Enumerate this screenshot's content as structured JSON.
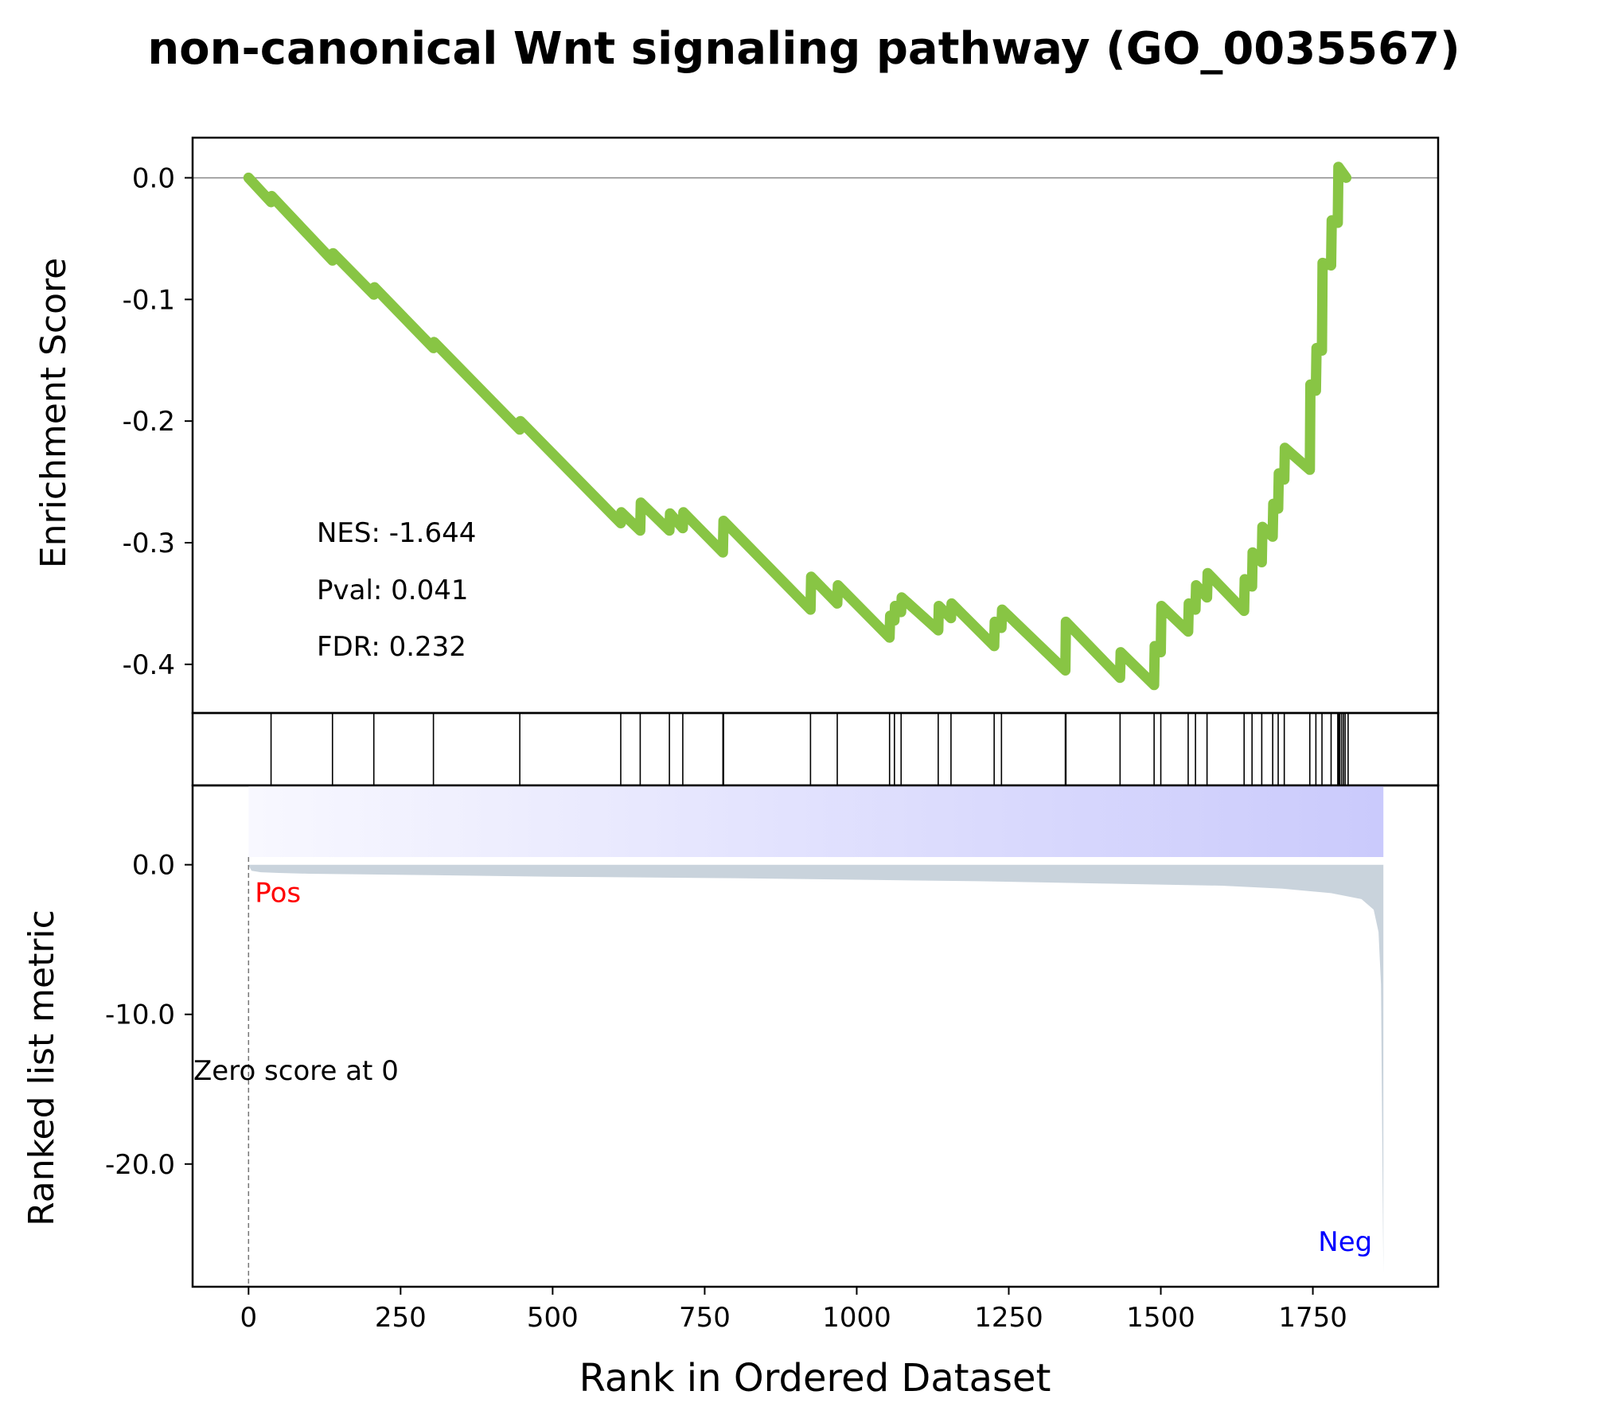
{
  "chart_data": {
    "type": "line",
    "title": "non-canonical Wnt signaling pathway (GO_0035567)",
    "xlabel": "Rank in Ordered Dataset",
    "x_ticks": [
      "0",
      "250",
      "500",
      "750",
      "1000",
      "1250",
      "1500",
      "1750"
    ],
    "xlim": [
      -92,
      1956
    ],
    "n_genes": 1866,
    "colors": {
      "es_line": "#88c544",
      "metric_fill": "#c9d3dc",
      "pos": "#ff0000",
      "neg": "#0000ff",
      "heat_start": "#f8f8ff",
      "heat_end": "#cacafc"
    },
    "enrichment": {
      "ylabel": "Enrichment Score",
      "ylim": [
        -0.44,
        0.033
      ],
      "y_ticks": [
        "0.0",
        "-0.1",
        "-0.2",
        "-0.3",
        "-0.4"
      ],
      "stats": {
        "nes": "NES: -1.644",
        "pval": "Pval: 0.041",
        "fdr": "FDR: 0.232"
      },
      "points": [
        [
          0,
          0.0
        ],
        [
          37,
          -0.02
        ],
        [
          38,
          -0.015
        ],
        [
          138,
          -0.068
        ],
        [
          139,
          -0.062
        ],
        [
          206,
          -0.096
        ],
        [
          207,
          -0.09
        ],
        [
          304,
          -0.14
        ],
        [
          305,
          -0.135
        ],
        [
          446,
          -0.207
        ],
        [
          447,
          -0.2
        ],
        [
          612,
          -0.284
        ],
        [
          613,
          -0.275
        ],
        [
          644,
          -0.29
        ],
        [
          645,
          -0.267
        ],
        [
          692,
          -0.29
        ],
        [
          693,
          -0.276
        ],
        [
          714,
          -0.288
        ],
        [
          715,
          -0.275
        ],
        [
          780,
          -0.308
        ],
        [
          781,
          -0.282
        ],
        [
          924,
          -0.355
        ],
        [
          925,
          -0.328
        ],
        [
          968,
          -0.35
        ],
        [
          969,
          -0.335
        ],
        [
          1054,
          -0.378
        ],
        [
          1055,
          -0.36
        ],
        [
          1062,
          -0.364
        ],
        [
          1063,
          -0.352
        ],
        [
          1073,
          -0.357
        ],
        [
          1074,
          -0.345
        ],
        [
          1134,
          -0.372
        ],
        [
          1135,
          -0.352
        ],
        [
          1155,
          -0.362
        ],
        [
          1156,
          -0.35
        ],
        [
          1226,
          -0.385
        ],
        [
          1227,
          -0.365
        ],
        [
          1238,
          -0.37
        ],
        [
          1239,
          -0.355
        ],
        [
          1343,
          -0.405
        ],
        [
          1344,
          -0.365
        ],
        [
          1433,
          -0.411
        ],
        [
          1434,
          -0.39
        ],
        [
          1489,
          -0.417
        ],
        [
          1490,
          -0.385
        ],
        [
          1500,
          -0.39
        ],
        [
          1501,
          -0.352
        ],
        [
          1545,
          -0.373
        ],
        [
          1546,
          -0.35
        ],
        [
          1557,
          -0.355
        ],
        [
          1558,
          -0.335
        ],
        [
          1576,
          -0.345
        ],
        [
          1577,
          -0.325
        ],
        [
          1637,
          -0.356
        ],
        [
          1638,
          -0.33
        ],
        [
          1650,
          -0.336
        ],
        [
          1651,
          -0.308
        ],
        [
          1666,
          -0.316
        ],
        [
          1667,
          -0.287
        ],
        [
          1684,
          -0.295
        ],
        [
          1685,
          -0.268
        ],
        [
          1693,
          -0.272
        ],
        [
          1694,
          -0.243
        ],
        [
          1703,
          -0.248
        ],
        [
          1704,
          -0.222
        ],
        [
          1745,
          -0.24
        ],
        [
          1746,
          -0.17
        ],
        [
          1755,
          -0.175
        ],
        [
          1756,
          -0.14
        ],
        [
          1765,
          -0.142
        ],
        [
          1766,
          -0.07
        ],
        [
          1780,
          -0.072
        ],
        [
          1781,
          -0.035
        ],
        [
          1791,
          -0.037
        ],
        [
          1792,
          0.009
        ],
        [
          1805,
          0.0
        ]
      ]
    },
    "hits": [
      37,
      138,
      206,
      304,
      446,
      612,
      644,
      692,
      714,
      780,
      781,
      924,
      968,
      1054,
      1062,
      1073,
      1134,
      1155,
      1226,
      1238,
      1343,
      1344,
      1433,
      1489,
      1500,
      1545,
      1557,
      1576,
      1637,
      1650,
      1666,
      1684,
      1693,
      1703,
      1745,
      1755,
      1765,
      1780,
      1791,
      1792,
      1794,
      1797,
      1800,
      1803,
      1808
    ],
    "ranked_metric": {
      "ylabel": "Ranked list metric",
      "ylim": [
        -28.2,
        5.3
      ],
      "y_ticks": [
        "0.0",
        "-10.0",
        "-20.0"
      ],
      "pos_label": "Pos",
      "neg_label": "Neg",
      "zero_label": "Zero score at 0",
      "points": [
        [
          0,
          -0.05
        ],
        [
          5,
          -0.4
        ],
        [
          20,
          -0.5
        ],
        [
          50,
          -0.55
        ],
        [
          100,
          -0.6
        ],
        [
          300,
          -0.7
        ],
        [
          500,
          -0.8
        ],
        [
          800,
          -0.9
        ],
        [
          1000,
          -1.0
        ],
        [
          1200,
          -1.1
        ],
        [
          1400,
          -1.25
        ],
        [
          1600,
          -1.4
        ],
        [
          1700,
          -1.6
        ],
        [
          1780,
          -1.9
        ],
        [
          1830,
          -2.3
        ],
        [
          1850,
          -3.0
        ],
        [
          1858,
          -4.5
        ],
        [
          1862,
          -8.0
        ],
        [
          1864,
          -18.0
        ],
        [
          1866,
          -27.3
        ]
      ]
    }
  }
}
